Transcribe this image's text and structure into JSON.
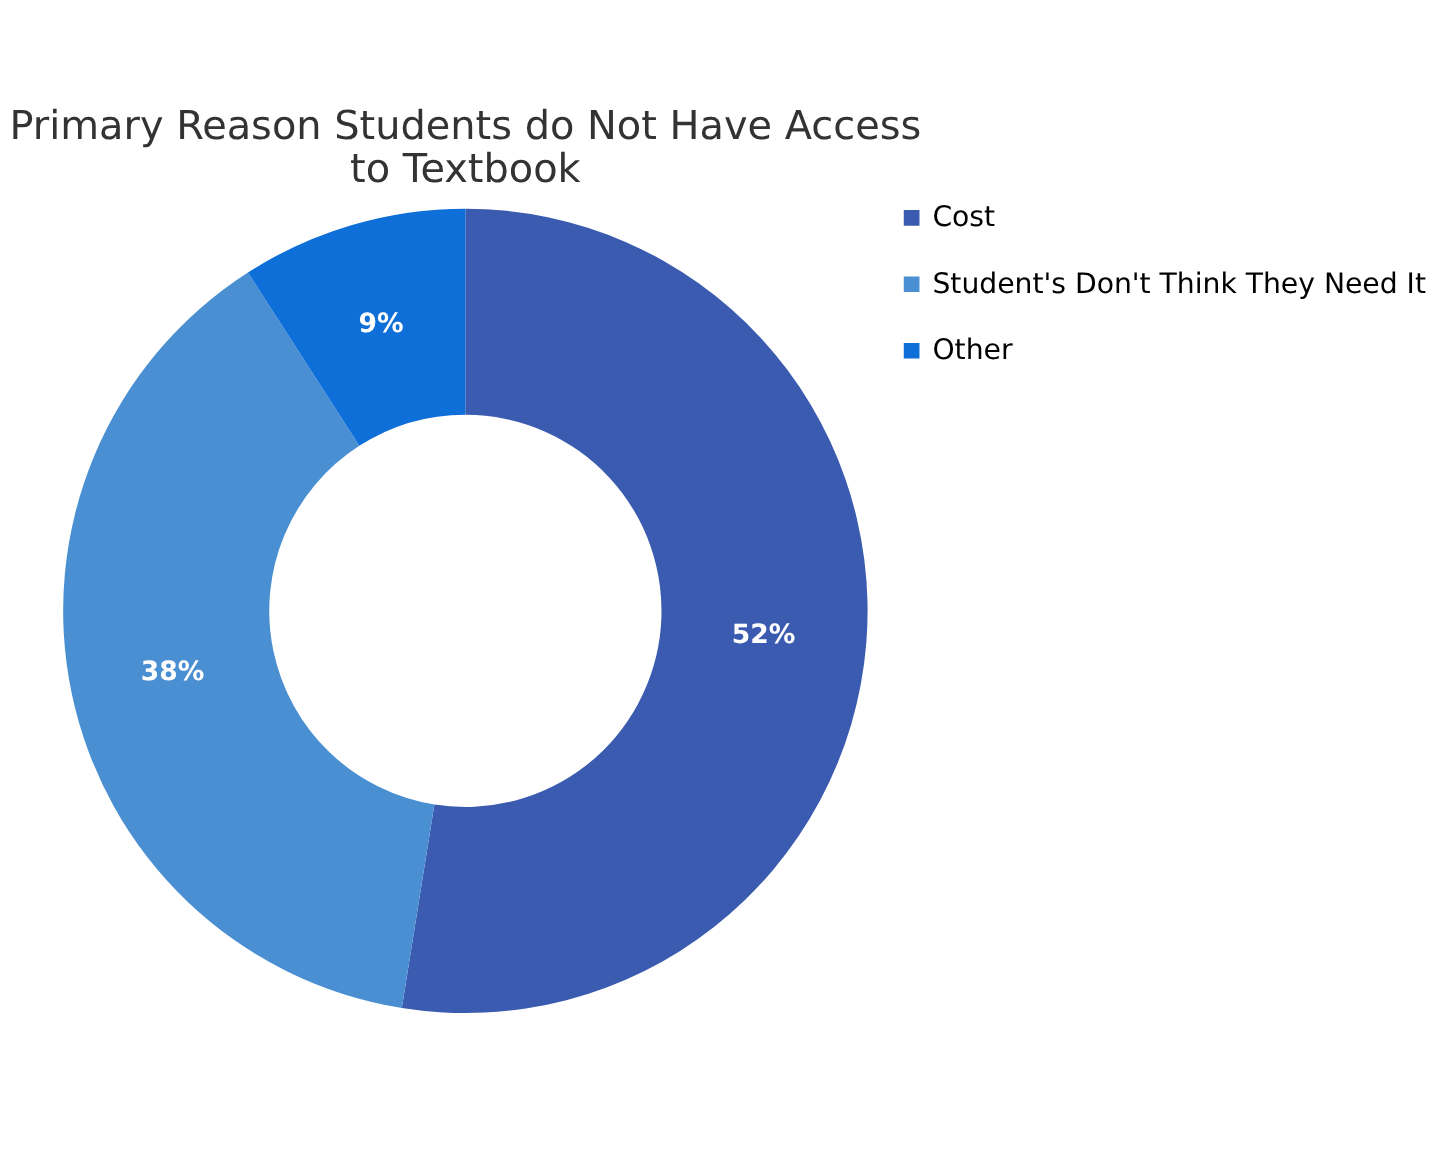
{
  "chart_data": {
    "type": "donut",
    "title": "Primary Reason Students do Not Have Access to Textbook",
    "categories": [
      "Cost",
      "Student's Don't Think They Need It",
      "Other"
    ],
    "values": [
      52,
      38,
      9
    ],
    "colors": [
      "#3a5bb0",
      "#4a8fd2",
      "#0f6fd8"
    ],
    "value_labels": [
      "52%",
      "38%",
      "9%"
    ],
    "legend": "top right"
  }
}
